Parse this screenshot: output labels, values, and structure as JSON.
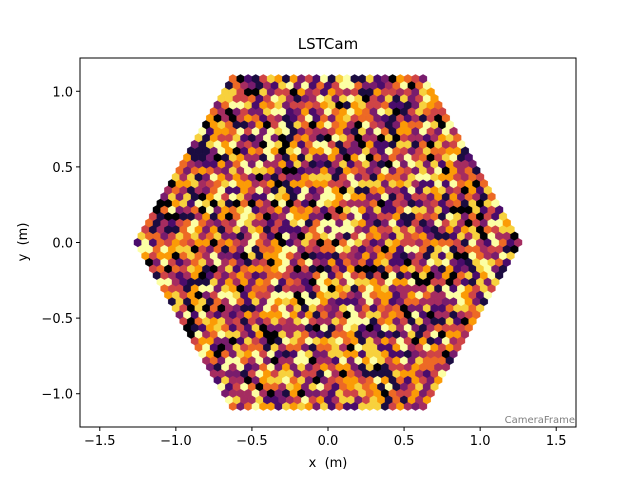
{
  "chart_data": {
    "type": "heatmap",
    "subtype": "hexagonal camera pixel image",
    "title": "LSTCam",
    "xlabel": "x  (m)",
    "ylabel": "y  (m)",
    "xlim": [
      -1.63,
      1.63
    ],
    "ylim": [
      -1.22,
      1.22
    ],
    "xticks": [
      -1.5,
      -1.0,
      -0.5,
      0.0,
      0.5,
      1.0,
      1.5
    ],
    "xtick_labels": [
      "−1.5",
      "−1.0",
      "−0.5",
      "0.0",
      "0.5",
      "1.0",
      "1.5"
    ],
    "yticks": [
      -1.0,
      -0.5,
      0.0,
      0.5,
      1.0
    ],
    "ytick_labels": [
      "−1.0",
      "−0.5",
      "0.0",
      "0.5",
      "1.0"
    ],
    "annotation": "CameraFrame",
    "grid": false,
    "colormap": "inferno",
    "camera": {
      "shape": "hexagon",
      "inner_radius": 1.11,
      "pixel_pitch": 0.05
    },
    "colors": {
      "inferno": [
        "#000004",
        "#1b0c41",
        "#4a0c6b",
        "#781c6d",
        "#a52c60",
        "#cf4446",
        "#ed6925",
        "#fb9b06",
        "#f7d13d",
        "#fcffa4"
      ]
    }
  }
}
